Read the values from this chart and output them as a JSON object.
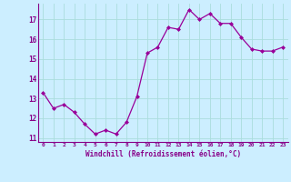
{
  "x": [
    0,
    1,
    2,
    3,
    4,
    5,
    6,
    7,
    8,
    9,
    10,
    11,
    12,
    13,
    14,
    15,
    16,
    17,
    18,
    19,
    20,
    21,
    22,
    23
  ],
  "y": [
    13.3,
    12.5,
    12.7,
    12.3,
    11.7,
    11.2,
    11.4,
    11.2,
    11.8,
    13.1,
    15.3,
    15.6,
    16.6,
    16.5,
    17.5,
    17.0,
    17.3,
    16.8,
    16.8,
    16.1,
    15.5,
    15.4,
    15.4,
    15.6
  ],
  "line_color": "#990099",
  "marker": "D",
  "marker_size": 2,
  "bg_color": "#cceeff",
  "grid_color": "#aadddd",
  "xlabel": "Windchill (Refroidissement éolien,°C)",
  "ylim": [
    10.8,
    17.8
  ],
  "xlim": [
    -0.5,
    23.5
  ],
  "yticks": [
    11,
    12,
    13,
    14,
    15,
    16,
    17
  ],
  "xticks": [
    0,
    1,
    2,
    3,
    4,
    5,
    6,
    7,
    8,
    9,
    10,
    11,
    12,
    13,
    14,
    15,
    16,
    17,
    18,
    19,
    20,
    21,
    22,
    23
  ],
  "tick_color": "#880088",
  "label_color": "#880088"
}
